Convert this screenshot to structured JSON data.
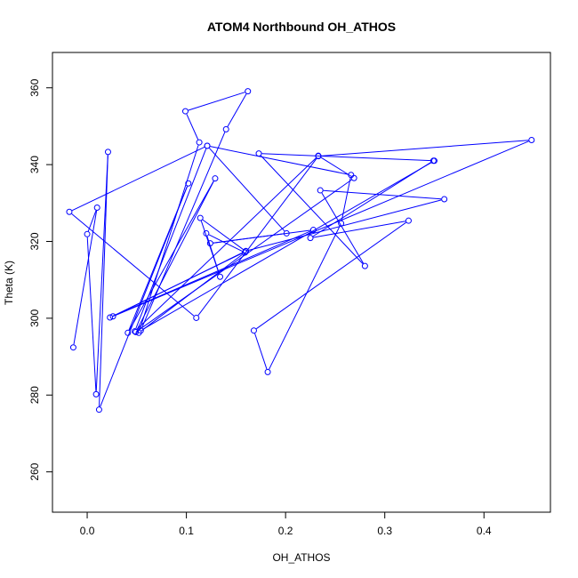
{
  "chart_data": {
    "type": "line",
    "title": "ATOM4 Northbound OH_ATHOS",
    "xlabel": "OH_ATHOS",
    "ylabel": "Theta (K)",
    "xlim": [
      -0.035,
      0.467
    ],
    "ylim": [
      249.5,
      369.2
    ],
    "x_ticks": [
      0.0,
      0.1,
      0.2,
      0.3,
      0.4
    ],
    "x_tick_labels": [
      "0.0",
      "0.1",
      "0.2",
      "0.3",
      "0.4"
    ],
    "y_ticks": [
      260,
      280,
      300,
      320,
      340,
      360
    ],
    "y_tick_labels": [
      "260",
      "280",
      "300",
      "320",
      "340",
      "360"
    ],
    "grid": false,
    "legend": "none",
    "series": [
      {
        "color": "#0000ff",
        "marker": "open-circle",
        "points": [
          [
            -0.014,
            292.4
          ],
          [
            0.01,
            328.8
          ],
          [
            0.0,
            321.9
          ],
          [
            0.009,
            280.2
          ],
          [
            0.021,
            343.3
          ],
          [
            0.012,
            276.2
          ],
          [
            0.102,
            335.1
          ],
          [
            0.041,
            296.2
          ],
          [
            0.129,
            336.4
          ],
          [
            0.049,
            296.4
          ],
          [
            0.269,
            336.5
          ],
          [
            0.233,
            342.3
          ],
          [
            0.048,
            296.6
          ],
          [
            0.121,
            344.9
          ],
          [
            0.201,
            322.1
          ],
          [
            0.124,
            319.5
          ],
          [
            0.228,
            323.0
          ],
          [
            0.023,
            300.2
          ],
          [
            0.16,
            317.4
          ],
          [
            0.114,
            326.1
          ],
          [
            0.134,
            310.8
          ],
          [
            0.12,
            322.1
          ],
          [
            0.159,
            317.1
          ],
          [
            0.052,
            296.2
          ],
          [
            0.113,
            345.8
          ],
          [
            0.099,
            353.9
          ],
          [
            0.162,
            359.1
          ],
          [
            0.14,
            349.2
          ],
          [
            0.054,
            296.8
          ],
          [
            0.35,
            341.0
          ],
          [
            0.173,
            342.9
          ],
          [
            0.28,
            313.6
          ],
          [
            0.235,
            333.3
          ],
          [
            0.36,
            331.0
          ],
          [
            0.16,
            317.5
          ],
          [
            0.026,
            300.5
          ],
          [
            0.448,
            346.4
          ],
          [
            0.233,
            342.2
          ],
          [
            0.11,
            300.1
          ],
          [
            -0.018,
            327.7
          ],
          [
            0.121,
            344.9
          ],
          [
            0.266,
            337.3
          ],
          [
            0.256,
            324.7
          ],
          [
            0.182,
            286.0
          ],
          [
            0.168,
            296.8
          ],
          [
            0.324,
            325.4
          ],
          [
            0.225,
            320.9
          ],
          [
            0.349,
            341.0
          ]
        ]
      }
    ]
  }
}
